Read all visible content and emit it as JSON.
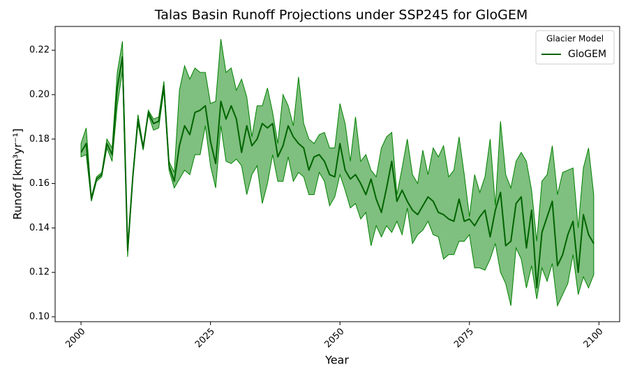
{
  "chart_data": {
    "type": "line",
    "title": "Talas Basin Runoff Projections under SSP245 for GloGEM",
    "xlabel": "Year",
    "ylabel": "Runoff [km³yr⁻¹]",
    "x": [
      2000,
      2001,
      2002,
      2003,
      2004,
      2005,
      2006,
      2007,
      2008,
      2009,
      2010,
      2011,
      2012,
      2013,
      2014,
      2015,
      2016,
      2017,
      2018,
      2019,
      2020,
      2021,
      2022,
      2023,
      2024,
      2025,
      2026,
      2027,
      2028,
      2029,
      2030,
      2031,
      2032,
      2033,
      2034,
      2035,
      2036,
      2037,
      2038,
      2039,
      2040,
      2041,
      2042,
      2043,
      2044,
      2045,
      2046,
      2047,
      2048,
      2049,
      2050,
      2051,
      2052,
      2053,
      2054,
      2055,
      2056,
      2057,
      2058,
      2059,
      2060,
      2061,
      2062,
      2063,
      2064,
      2065,
      2066,
      2067,
      2068,
      2069,
      2070,
      2071,
      2072,
      2073,
      2074,
      2075,
      2076,
      2077,
      2078,
      2079,
      2080,
      2081,
      2082,
      2083,
      2084,
      2085,
      2086,
      2087,
      2088,
      2089,
      2090,
      2091,
      2092,
      2093,
      2094,
      2095,
      2096,
      2097,
      2098,
      2099
    ],
    "series": [
      {
        "name": "GloGEM",
        "color": "#006400",
        "values": [
          0.174,
          0.178,
          0.153,
          0.162,
          0.164,
          0.178,
          0.173,
          0.203,
          0.217,
          0.13,
          0.163,
          0.189,
          0.176,
          0.192,
          0.187,
          0.188,
          0.204,
          0.168,
          0.161,
          0.177,
          0.186,
          0.182,
          0.192,
          0.193,
          0.195,
          0.179,
          0.169,
          0.197,
          0.189,
          0.195,
          0.189,
          0.174,
          0.186,
          0.177,
          0.18,
          0.187,
          0.185,
          0.187,
          0.172,
          0.177,
          0.186,
          0.181,
          0.178,
          0.176,
          0.166,
          0.172,
          0.173,
          0.17,
          0.164,
          0.163,
          0.178,
          0.166,
          0.162,
          0.164,
          0.16,
          0.155,
          0.162,
          0.153,
          0.147,
          0.158,
          0.17,
          0.152,
          0.157,
          0.152,
          0.148,
          0.146,
          0.15,
          0.154,
          0.152,
          0.147,
          0.146,
          0.144,
          0.143,
          0.153,
          0.143,
          0.144,
          0.141,
          0.145,
          0.148,
          0.136,
          0.148,
          0.156,
          0.132,
          0.134,
          0.151,
          0.154,
          0.131,
          0.148,
          0.113,
          0.138,
          0.145,
          0.152,
          0.123,
          0.128,
          0.137,
          0.143,
          0.12,
          0.146,
          0.137,
          0.133
        ]
      }
    ],
    "band": {
      "color": "#008000",
      "upper": [
        0.178,
        0.185,
        0.154,
        0.163,
        0.165,
        0.18,
        0.176,
        0.21,
        0.224,
        0.131,
        0.164,
        0.191,
        0.177,
        0.193,
        0.189,
        0.19,
        0.206,
        0.17,
        0.165,
        0.202,
        0.213,
        0.207,
        0.212,
        0.21,
        0.21,
        0.196,
        0.197,
        0.225,
        0.21,
        0.212,
        0.202,
        0.207,
        0.199,
        0.181,
        0.195,
        0.195,
        0.203,
        0.192,
        0.178,
        0.2,
        0.195,
        0.186,
        0.208,
        0.187,
        0.18,
        0.178,
        0.182,
        0.183,
        0.176,
        0.176,
        0.196,
        0.187,
        0.17,
        0.19,
        0.17,
        0.173,
        0.166,
        0.163,
        0.176,
        0.181,
        0.183,
        0.155,
        0.167,
        0.18,
        0.164,
        0.16,
        0.175,
        0.164,
        0.176,
        0.172,
        0.177,
        0.163,
        0.166,
        0.181,
        0.164,
        0.145,
        0.164,
        0.156,
        0.163,
        0.18,
        0.15,
        0.188,
        0.164,
        0.158,
        0.17,
        0.174,
        0.17,
        0.157,
        0.134,
        0.161,
        0.164,
        0.177,
        0.155,
        0.165,
        0.166,
        0.167,
        0.14,
        0.167,
        0.176,
        0.155
      ],
      "lower": [
        0.172,
        0.173,
        0.152,
        0.161,
        0.163,
        0.176,
        0.17,
        0.195,
        0.211,
        0.127,
        0.162,
        0.187,
        0.175,
        0.191,
        0.184,
        0.185,
        0.202,
        0.166,
        0.158,
        0.162,
        0.166,
        0.164,
        0.173,
        0.173,
        0.186,
        0.168,
        0.158,
        0.186,
        0.17,
        0.169,
        0.171,
        0.168,
        0.155,
        0.164,
        0.168,
        0.151,
        0.16,
        0.173,
        0.161,
        0.161,
        0.172,
        0.161,
        0.165,
        0.163,
        0.155,
        0.155,
        0.165,
        0.161,
        0.15,
        0.154,
        0.164,
        0.157,
        0.149,
        0.151,
        0.144,
        0.147,
        0.132,
        0.141,
        0.136,
        0.141,
        0.138,
        0.143,
        0.137,
        0.149,
        0.133,
        0.137,
        0.139,
        0.143,
        0.137,
        0.136,
        0.126,
        0.128,
        0.128,
        0.134,
        0.134,
        0.137,
        0.122,
        0.122,
        0.121,
        0.126,
        0.133,
        0.12,
        0.115,
        0.105,
        0.131,
        0.126,
        0.113,
        0.123,
        0.108,
        0.122,
        0.116,
        0.124,
        0.105,
        0.11,
        0.115,
        0.128,
        0.11,
        0.118,
        0.113,
        0.119
      ]
    },
    "xlim": [
      1995,
      2104
    ],
    "ylim": [
      0.0978,
      0.2307
    ],
    "xticks": [
      2000,
      2025,
      2050,
      2075,
      2100
    ],
    "yticks": [
      {
        "value": 0.1,
        "label": "0.10"
      },
      0.12,
      0.14,
      0.16,
      0.18,
      {
        "value": 0.2,
        "label": "0.20"
      },
      0.22
    ],
    "grid": false,
    "legend": {
      "title": "Glacier Model",
      "loc": "upper right"
    }
  }
}
